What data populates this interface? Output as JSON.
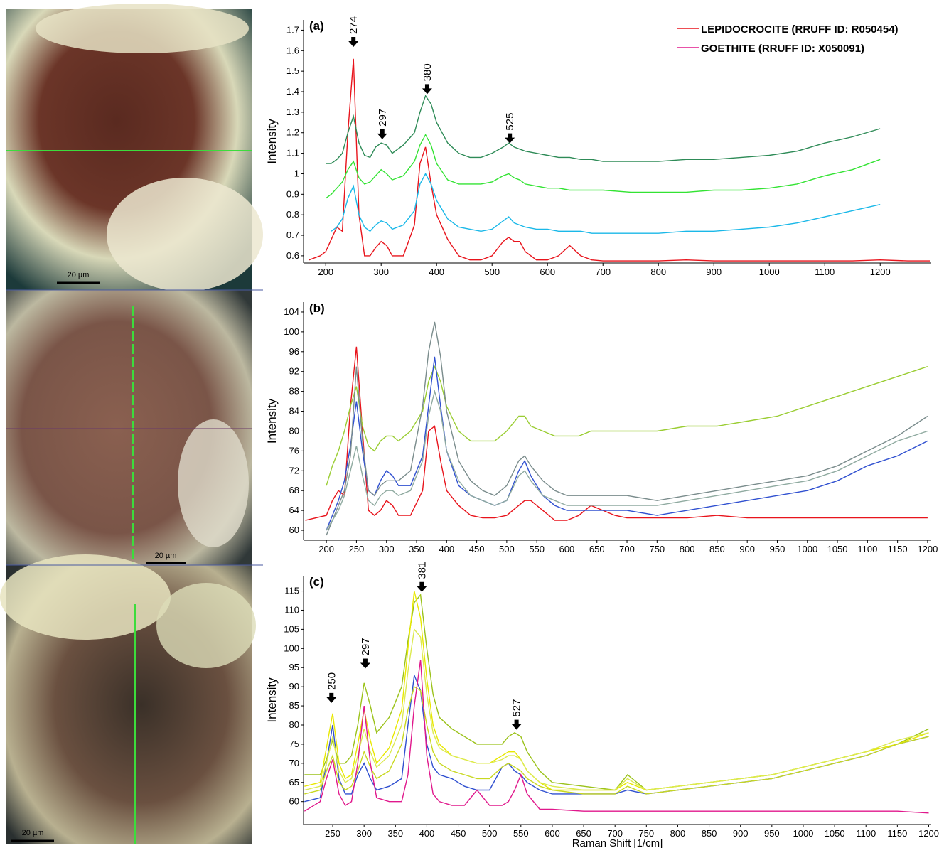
{
  "images": [
    {
      "scale_label": "20 µm"
    },
    {
      "scale_label": "20 µm"
    },
    {
      "scale_label": "20 µm"
    }
  ],
  "chart_data": [
    {
      "type": "line",
      "label": "(a)",
      "ylabel": "Intensity",
      "legend": "upper right",
      "xlim": [
        160,
        1292
      ],
      "ylim": [
        0.565,
        1.75
      ],
      "xticks": [
        200,
        300,
        400,
        500,
        600,
        700,
        800,
        900,
        1000,
        1100,
        1200
      ],
      "yticks": [
        0.6,
        0.7,
        0.8,
        0.9,
        1,
        1.1,
        1.2,
        1.3,
        1.4,
        1.5,
        1.6,
        1.7
      ],
      "x": [
        170,
        190,
        200,
        210,
        220,
        230,
        240,
        250,
        260,
        270,
        280,
        290,
        300,
        310,
        320,
        340,
        360,
        370,
        380,
        390,
        400,
        420,
        440,
        460,
        480,
        500,
        520,
        530,
        540,
        550,
        560,
        580,
        600,
        620,
        640,
        660,
        680,
        700,
        750,
        800,
        850,
        900,
        950,
        1000,
        1050,
        1100,
        1150,
        1200,
        1250,
        1290
      ],
      "series": [
        {
          "name": "LEPIDOCROCITE (RRUFF ID: R050454)",
          "color": "#e8141c",
          "values": [
            0.58,
            0.6,
            0.62,
            0.68,
            0.74,
            0.72,
            1.2,
            1.56,
            0.8,
            0.6,
            0.6,
            0.64,
            0.67,
            0.65,
            0.6,
            0.6,
            0.75,
            1.05,
            1.13,
            0.95,
            0.8,
            0.68,
            0.6,
            0.58,
            0.58,
            0.6,
            0.67,
            0.69,
            0.67,
            0.67,
            0.62,
            0.58,
            0.58,
            0.6,
            0.65,
            0.6,
            0.58,
            0.575,
            0.575,
            0.575,
            0.58,
            0.575,
            0.575,
            0.575,
            0.575,
            0.575,
            0.575,
            0.58,
            0.575,
            0.575
          ]
        },
        {
          "color": "#2e8b57",
          "values": [
            null,
            null,
            1.05,
            1.05,
            1.07,
            1.1,
            1.2,
            1.28,
            1.15,
            1.09,
            1.08,
            1.13,
            1.15,
            1.14,
            1.1,
            1.14,
            1.2,
            1.3,
            1.38,
            1.34,
            1.25,
            1.15,
            1.1,
            1.08,
            1.08,
            1.1,
            1.13,
            1.15,
            1.13,
            1.12,
            1.11,
            1.1,
            1.09,
            1.08,
            1.08,
            1.07,
            1.07,
            1.06,
            1.06,
            1.06,
            1.07,
            1.07,
            1.08,
            1.09,
            1.11,
            1.15,
            1.18,
            1.22,
            null,
            null
          ]
        },
        {
          "color": "#33e333",
          "values": [
            null,
            null,
            0.88,
            0.9,
            0.93,
            0.96,
            1.02,
            1.06,
            0.98,
            0.95,
            0.96,
            0.99,
            1.02,
            1.0,
            0.97,
            0.99,
            1.06,
            1.14,
            1.19,
            1.14,
            1.05,
            0.97,
            0.95,
            0.95,
            0.95,
            0.96,
            0.99,
            1.0,
            0.98,
            0.97,
            0.95,
            0.94,
            0.93,
            0.93,
            0.92,
            0.92,
            0.92,
            0.92,
            0.91,
            0.91,
            0.91,
            0.92,
            0.92,
            0.93,
            0.95,
            0.99,
            1.02,
            1.07,
            null,
            null
          ]
        },
        {
          "color": "#1ab8e8",
          "values": [
            null,
            null,
            null,
            0.72,
            0.74,
            0.78,
            0.88,
            0.94,
            0.8,
            0.74,
            0.72,
            0.75,
            0.77,
            0.76,
            0.73,
            0.75,
            0.82,
            0.95,
            1.0,
            0.95,
            0.87,
            0.78,
            0.74,
            0.73,
            0.72,
            0.73,
            0.77,
            0.79,
            0.76,
            0.75,
            0.74,
            0.73,
            0.73,
            0.72,
            0.72,
            0.72,
            0.71,
            0.71,
            0.71,
            0.71,
            0.72,
            0.72,
            0.73,
            0.74,
            0.76,
            0.79,
            0.82,
            0.85,
            null,
            null
          ]
        }
      ],
      "annotations": [
        {
          "label": "274",
          "x": 250,
          "y": 1.66
        },
        {
          "label": "297",
          "x": 302,
          "y": 1.21
        },
        {
          "label": "380",
          "x": 383,
          "y": 1.43
        },
        {
          "label": "525",
          "x": 532,
          "y": 1.19
        }
      ]
    },
    {
      "type": "line",
      "label": "(b)",
      "ylabel": "Intensity",
      "xlim": [
        162,
        1206
      ],
      "ylim": [
        58,
        106
      ],
      "xticks": [
        200,
        250,
        300,
        350,
        400,
        450,
        500,
        550,
        600,
        650,
        700,
        750,
        800,
        850,
        900,
        950,
        1000,
        1050,
        1100,
        1150,
        1200
      ],
      "yticks": [
        60,
        64,
        68,
        72,
        76,
        80,
        84,
        88,
        92,
        96,
        100,
        104
      ],
      "x": [
        165,
        200,
        210,
        220,
        230,
        240,
        250,
        260,
        270,
        280,
        290,
        300,
        310,
        320,
        340,
        360,
        370,
        380,
        390,
        400,
        420,
        440,
        460,
        480,
        500,
        520,
        530,
        540,
        560,
        580,
        600,
        620,
        640,
        660,
        680,
        700,
        750,
        800,
        850,
        900,
        950,
        1000,
        1050,
        1100,
        1150,
        1200
      ],
      "series": [
        {
          "color": "#e8141c",
          "values": [
            62,
            63,
            66,
            68,
            67,
            85,
            97,
            80,
            64,
            63,
            64,
            66,
            65,
            63,
            63,
            68,
            80,
            81,
            74,
            68,
            65,
            63,
            62.5,
            62.5,
            63,
            65,
            66,
            66,
            64,
            62,
            62,
            63,
            65,
            64,
            63,
            62.5,
            62.5,
            62.5,
            63,
            62.5,
            62.5,
            62.5,
            62.5,
            62.5,
            62.5,
            62.5
          ]
        },
        {
          "color": "#9acd32",
          "values": [
            null,
            69,
            73,
            76,
            80,
            85,
            89,
            81,
            77,
            76,
            78,
            79,
            79,
            78,
            80,
            84,
            90,
            93,
            90,
            85,
            80,
            78,
            78,
            78,
            80,
            83,
            83,
            81,
            80,
            79,
            79,
            79,
            80,
            80,
            80,
            80,
            80,
            81,
            81,
            82,
            83,
            85,
            87,
            89,
            91,
            93
          ]
        },
        {
          "color": "#3050d0",
          "values": [
            null,
            60,
            63,
            66,
            70,
            77,
            86,
            76,
            68,
            67,
            70,
            72,
            71,
            69,
            69,
            75,
            85,
            95,
            85,
            76,
            69,
            67,
            66,
            65,
            66,
            72,
            74,
            71,
            67,
            65,
            64,
            64,
            64,
            64,
            64,
            64,
            63,
            64,
            65,
            66,
            67,
            68,
            70,
            73,
            75,
            78
          ]
        },
        {
          "color": "#7a8c8c",
          "values": [
            null,
            59,
            62,
            65,
            68,
            75,
            93,
            78,
            68,
            67,
            69,
            70,
            70,
            70,
            72,
            85,
            96,
            102,
            95,
            84,
            74,
            70,
            68,
            67,
            69,
            74,
            75,
            73,
            70,
            68,
            67,
            67,
            67,
            67,
            67,
            67,
            66,
            67,
            68,
            69,
            70,
            71,
            73,
            76,
            79,
            83
          ]
        },
        {
          "color": "#8faaa0",
          "values": [
            null,
            60,
            62,
            64,
            67,
            72,
            77,
            71,
            66,
            65,
            67,
            68,
            68,
            67,
            68,
            74,
            83,
            88,
            84,
            76,
            70,
            67,
            66,
            65,
            66,
            71,
            72,
            70,
            67,
            66,
            65,
            65,
            65,
            65,
            65,
            65,
            65,
            66,
            67,
            68,
            69,
            70,
            72,
            75,
            78,
            80
          ]
        }
      ]
    },
    {
      "type": "line",
      "label": "(c)",
      "ylabel": "Intensity",
      "xlabel": "Raman Shift [1/cm]",
      "xlim": [
        203.5,
        1204
      ],
      "ylim": [
        54,
        119
      ],
      "xticks": [
        250,
        300,
        350,
        400,
        450,
        500,
        550,
        600,
        650,
        700,
        750,
        800,
        850,
        900,
        950,
        1000,
        1050,
        1100,
        1150,
        1200
      ],
      "yticks": [
        60,
        65,
        70,
        75,
        80,
        85,
        90,
        95,
        100,
        105,
        110,
        115
      ],
      "x": [
        205,
        230,
        240,
        250,
        260,
        270,
        280,
        290,
        300,
        310,
        320,
        340,
        360,
        370,
        380,
        390,
        400,
        410,
        420,
        440,
        460,
        480,
        500,
        520,
        530,
        540,
        550,
        560,
        580,
        600,
        650,
        700,
        720,
        750,
        800,
        850,
        900,
        950,
        1000,
        1050,
        1100,
        1150,
        1200
      ],
      "series": [
        {
          "color": "#3050d0",
          "values": [
            60,
            61,
            70,
            80,
            66,
            62,
            62,
            67,
            70,
            66,
            63,
            64,
            66,
            80,
            93,
            89,
            75,
            69,
            67,
            66,
            64,
            63,
            63,
            69,
            70,
            68,
            67,
            65,
            63,
            62,
            62,
            62,
            63,
            62,
            63,
            64,
            65,
            66,
            68,
            70,
            72,
            75,
            77
          ]
        },
        {
          "color": "#9bc21a",
          "values": [
            67,
            67,
            71,
            76,
            70,
            70,
            72,
            80,
            91,
            85,
            78,
            82,
            90,
            102,
            112,
            114,
            100,
            88,
            82,
            79,
            77,
            75,
            75,
            75,
            77,
            78,
            77,
            73,
            68,
            65,
            64,
            63,
            67,
            63,
            64,
            65,
            66,
            67,
            69,
            71,
            73,
            75,
            79
          ]
        },
        {
          "color": "#e8e800",
          "values": [
            64,
            65,
            74,
            83,
            70,
            66,
            67,
            75,
            84,
            76,
            70,
            74,
            84,
            100,
            115,
            108,
            92,
            80,
            75,
            72,
            71,
            70,
            70,
            72,
            73,
            73,
            71,
            68,
            65,
            63,
            63,
            63,
            65,
            63,
            64,
            65,
            66,
            67,
            69,
            71,
            73,
            75,
            78
          ]
        },
        {
          "color": "#c8d820",
          "values": [
            62,
            63,
            68,
            72,
            65,
            63,
            64,
            68,
            73,
            69,
            66,
            68,
            75,
            84,
            90,
            89,
            80,
            73,
            70,
            68,
            67,
            66,
            66,
            69,
            70,
            69,
            68,
            66,
            64,
            63,
            62,
            62,
            64,
            62,
            63,
            64,
            65,
            66,
            68,
            70,
            72,
            75,
            77
          ]
        },
        {
          "color": "#dcea50",
          "values": [
            63,
            64,
            70,
            77,
            68,
            65,
            66,
            72,
            79,
            73,
            69,
            72,
            80,
            94,
            105,
            103,
            88,
            78,
            74,
            72,
            71,
            70,
            70,
            71,
            72,
            72,
            71,
            68,
            65,
            64,
            63,
            63,
            66,
            63,
            64,
            65,
            66,
            67,
            69,
            71,
            73,
            76,
            78
          ]
        },
        {
          "name": "GOETHITE (RRUFF ID: X050091)",
          "color": "#e0188c",
          "values": [
            57.5,
            60,
            66,
            71,
            62,
            59,
            60,
            70,
            85,
            70,
            61,
            60,
            60,
            67,
            85,
            97,
            72,
            62,
            60,
            59,
            59,
            63,
            59,
            59,
            60,
            63,
            67,
            62,
            58,
            58,
            57.5,
            57.5,
            57.5,
            57.5,
            57.5,
            57.5,
            57.5,
            57.5,
            57.5,
            57.5,
            57.5,
            57.5,
            57
          ]
        }
      ],
      "annotations": [
        {
          "label": "250",
          "x": 248,
          "y": 88
        },
        {
          "label": "297",
          "x": 302,
          "y": 97
        },
        {
          "label": "381",
          "x": 392,
          "y": 117
        },
        {
          "label": "527",
          "x": 543,
          "y": 81
        }
      ]
    }
  ]
}
